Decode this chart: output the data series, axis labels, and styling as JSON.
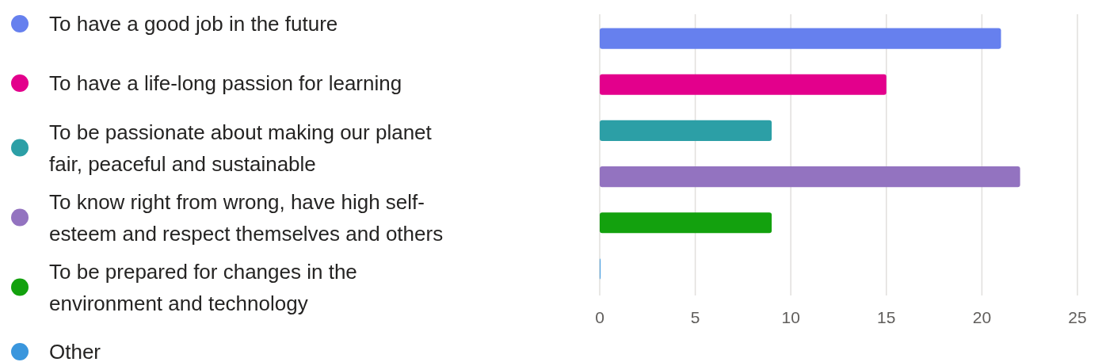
{
  "chart_data": {
    "type": "bar",
    "orientation": "horizontal",
    "categories": [
      null,
      null,
      null,
      null,
      null,
      null
    ],
    "series": [
      {
        "name": "To have a good job in the future",
        "color": "#6680ee",
        "values": [
          21,
          null,
          null,
          null,
          null,
          null
        ]
      },
      {
        "name": "To have a life-long passion for learning",
        "color": "#e3008c",
        "values": [
          null,
          15,
          null,
          null,
          null,
          null
        ]
      },
      {
        "name": "To be passionate about making our planet fair, peaceful and sustainable",
        "color": "#2c9fa6",
        "values": [
          null,
          null,
          9,
          null,
          null,
          null
        ]
      },
      {
        "name": "To know right from wrong, have high self-esteem and respect themselves and others",
        "color": "#9373c0",
        "values": [
          null,
          null,
          null,
          22,
          null,
          null
        ]
      },
      {
        "name": "To be prepared for changes in the environment and technology",
        "color": "#13a10e",
        "values": [
          null,
          null,
          null,
          null,
          9,
          null
        ]
      },
      {
        "name": "Other",
        "color": "#3a96dd",
        "values": [
          null,
          null,
          null,
          null,
          null,
          0
        ]
      }
    ],
    "xlim": [
      0,
      25
    ],
    "xticks": [
      0,
      5,
      10,
      15,
      20,
      25
    ],
    "grid": "x",
    "legend": "left"
  }
}
